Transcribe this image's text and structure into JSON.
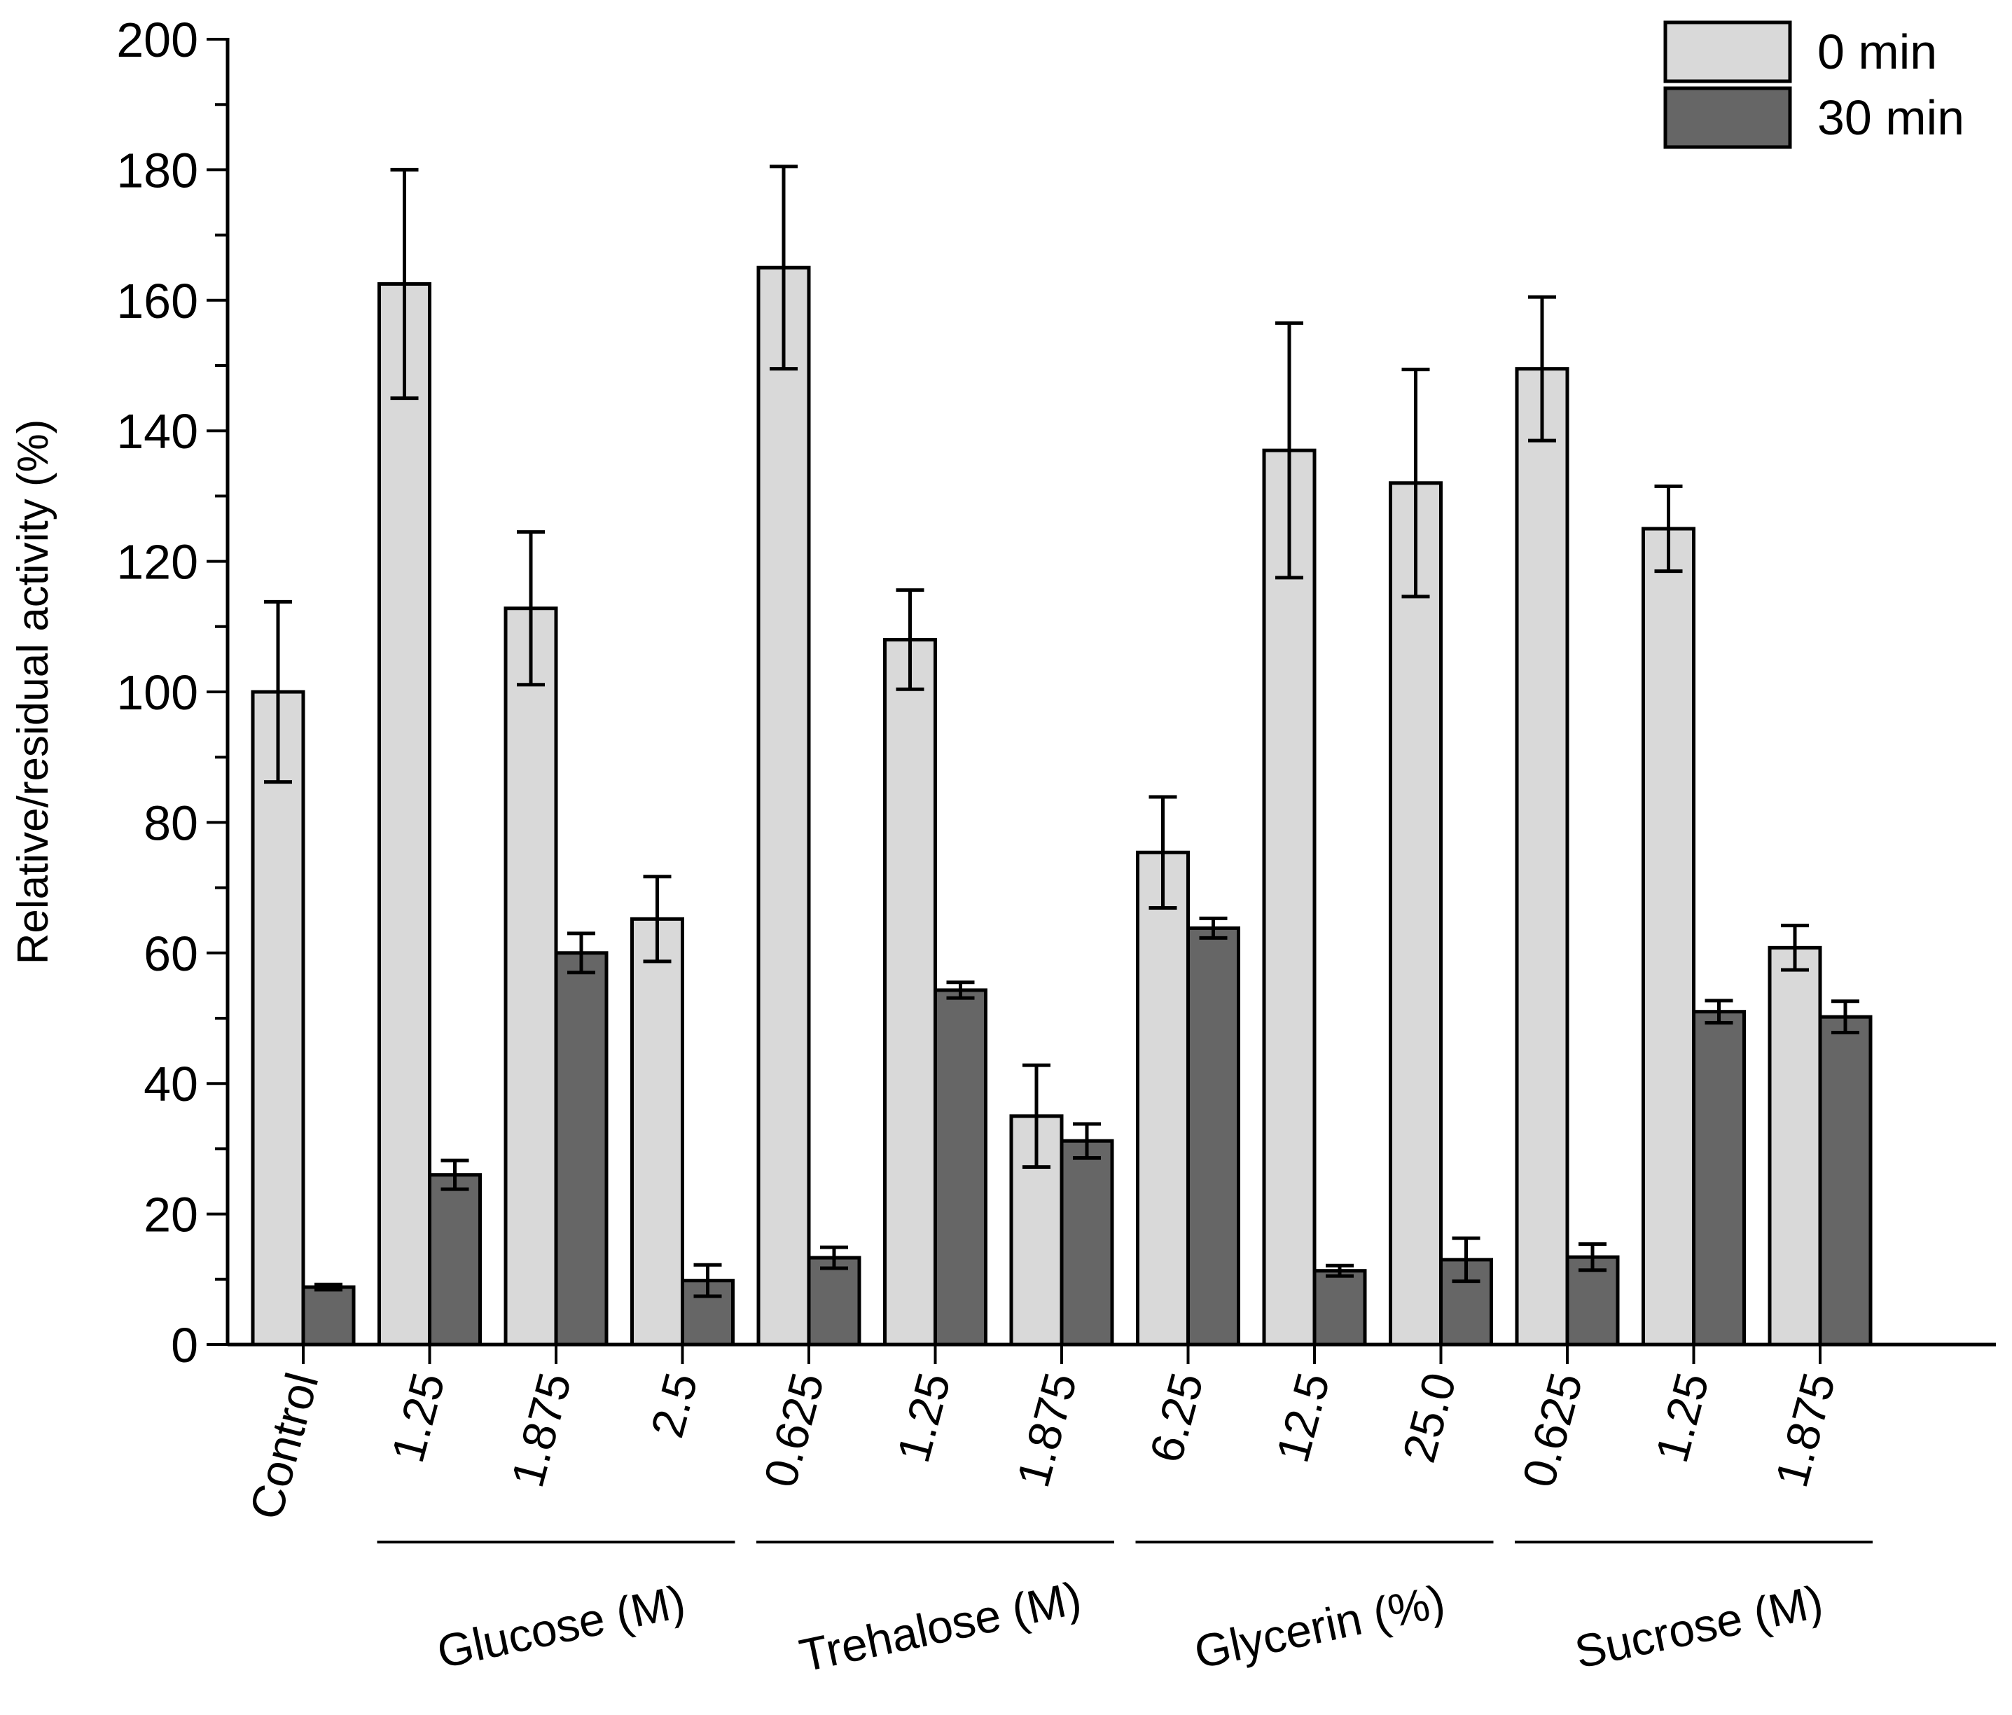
{
  "chart_data": {
    "type": "bar",
    "title": "",
    "xlabel": "",
    "ylabel": "Relative/residual activity (%)",
    "ylim": [
      0,
      200
    ],
    "y_ticks": [
      "0",
      "20",
      "40",
      "60",
      "80",
      "100",
      "120",
      "140",
      "160",
      "180",
      "200"
    ],
    "categories": [
      "Control",
      "1.25",
      "1.875",
      "2.5",
      "0.625",
      "1.25",
      "1.875",
      "6.25",
      "12.5",
      "25.0",
      "0.625",
      "1.25",
      "1.875"
    ],
    "groups": [
      {
        "label": "Glucose (M)",
        "from": 1,
        "to": 3
      },
      {
        "label": "Trehalose (M)",
        "from": 4,
        "to": 6
      },
      {
        "label": "Glycerin (%)",
        "from": 7,
        "to": 9
      },
      {
        "label": "Sucrose (M)",
        "from": 10,
        "to": 12
      }
    ],
    "series": [
      {
        "name": "0 min",
        "color": "#d9d9d9",
        "values": [
          100,
          162.5,
          112.8,
          65.2,
          165,
          108,
          35,
          75.4,
          137,
          132,
          149.5,
          125,
          60.8
        ],
        "errors": [
          13.8,
          17.5,
          11.7,
          6.5,
          15.5,
          7.6,
          7.8,
          8.5,
          19.5,
          17.4,
          11,
          6.5,
          3.4
        ]
      },
      {
        "name": "30 min",
        "color": "#666666",
        "values": [
          8.8,
          26,
          60,
          9.8,
          13.3,
          54.3,
          31.2,
          63.8,
          11.3,
          13,
          13.4,
          51,
          50.2
        ],
        "errors": [
          0.4,
          2.2,
          3,
          2.4,
          1.6,
          1.2,
          2.6,
          1.5,
          0.8,
          3.3,
          2,
          1.7,
          2.4
        ]
      }
    ],
    "legend_position": "top-right",
    "grid": false
  }
}
